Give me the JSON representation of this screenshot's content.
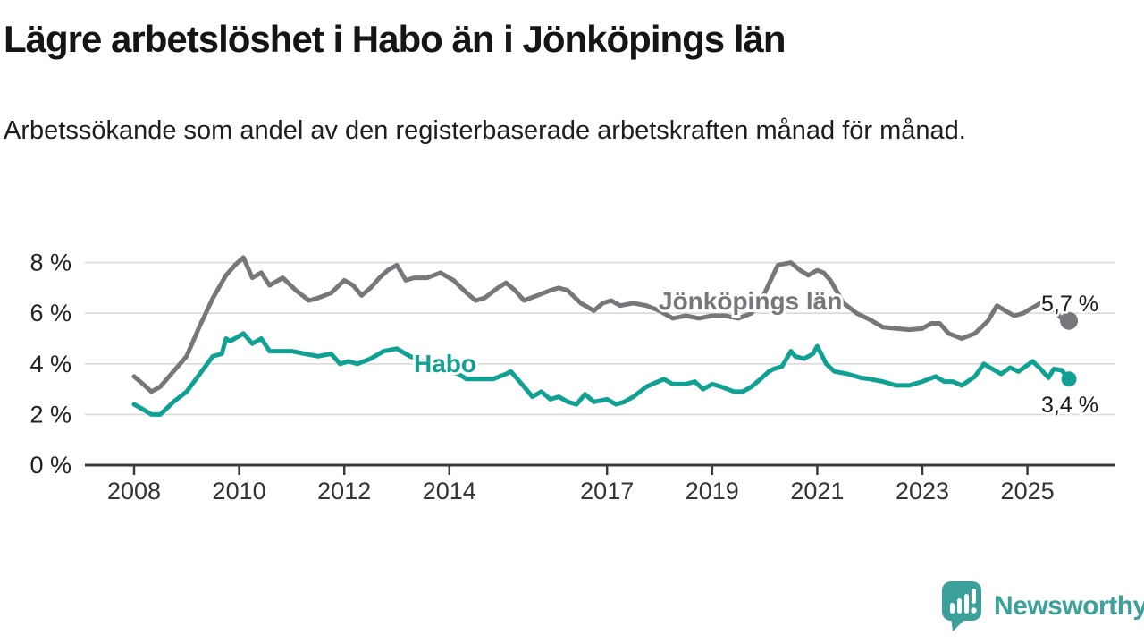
{
  "header": {
    "title": "Lägre arbetslöshet i Habo än i Jönköpings län",
    "subtitle": "Arbetssökande som andel av den registerbaserade arbetskraften månad för månad."
  },
  "chart_data": {
    "type": "line",
    "title": "Lägre arbetslöshet i Habo än i Jönköpings län",
    "subtitle": "Arbetssökande som andel av den registerbaserade arbetskraften månad för månad.",
    "xlabel": "",
    "ylabel": "",
    "y_unit": "%",
    "x_unit": "year",
    "xlim": [
      2007.06,
      2026.67
    ],
    "ylim": [
      0,
      8.6
    ],
    "grid": "horizontal",
    "legend": "inline-labels",
    "y_ticks": [
      {
        "value": 0,
        "label": "0 %"
      },
      {
        "value": 2,
        "label": "2 %"
      },
      {
        "value": 4,
        "label": "4 %"
      },
      {
        "value": 6,
        "label": "6 %"
      },
      {
        "value": 8,
        "label": "8 %"
      }
    ],
    "x_ticks": [
      {
        "year": 2008,
        "label": "2008"
      },
      {
        "year": 2010,
        "label": "2010"
      },
      {
        "year": 2012,
        "label": "2012"
      },
      {
        "year": 2014,
        "label": "2014"
      },
      {
        "year": 2017,
        "label": "2017"
      },
      {
        "year": 2019,
        "label": "2019"
      },
      {
        "year": 2021,
        "label": "2021"
      },
      {
        "year": 2023,
        "label": "2023"
      },
      {
        "year": 2025,
        "label": "2025"
      }
    ],
    "series": [
      {
        "name": "Jönköpings län",
        "color": "#77777b",
        "end_label": "5,7 %",
        "end_value": 5.7,
        "points": [
          [
            2008.0,
            3.5
          ],
          [
            2008.17,
            3.2
          ],
          [
            2008.33,
            2.9
          ],
          [
            2008.5,
            3.1
          ],
          [
            2008.75,
            3.7
          ],
          [
            2009.0,
            4.3
          ],
          [
            2009.25,
            5.5
          ],
          [
            2009.5,
            6.6
          ],
          [
            2009.75,
            7.5
          ],
          [
            2009.92,
            7.9
          ],
          [
            2010.08,
            8.2
          ],
          [
            2010.25,
            7.4
          ],
          [
            2010.42,
            7.6
          ],
          [
            2010.58,
            7.1
          ],
          [
            2010.83,
            7.4
          ],
          [
            2011.08,
            6.9
          ],
          [
            2011.33,
            6.5
          ],
          [
            2011.5,
            6.6
          ],
          [
            2011.75,
            6.8
          ],
          [
            2012.0,
            7.3
          ],
          [
            2012.17,
            7.1
          ],
          [
            2012.33,
            6.7
          ],
          [
            2012.5,
            7.0
          ],
          [
            2012.67,
            7.4
          ],
          [
            2012.83,
            7.7
          ],
          [
            2013.0,
            7.9
          ],
          [
            2013.17,
            7.3
          ],
          [
            2013.33,
            7.4
          ],
          [
            2013.58,
            7.4
          ],
          [
            2013.83,
            7.6
          ],
          [
            2014.08,
            7.3
          ],
          [
            2014.33,
            6.8
          ],
          [
            2014.5,
            6.5
          ],
          [
            2014.67,
            6.6
          ],
          [
            2014.92,
            7.0
          ],
          [
            2015.08,
            7.2
          ],
          [
            2015.25,
            6.9
          ],
          [
            2015.42,
            6.5
          ],
          [
            2015.67,
            6.7
          ],
          [
            2015.92,
            6.9
          ],
          [
            2016.08,
            7.0
          ],
          [
            2016.25,
            6.9
          ],
          [
            2016.5,
            6.4
          ],
          [
            2016.75,
            6.1
          ],
          [
            2016.92,
            6.4
          ],
          [
            2017.08,
            6.5
          ],
          [
            2017.25,
            6.3
          ],
          [
            2017.5,
            6.4
          ],
          [
            2017.75,
            6.3
          ],
          [
            2018.0,
            6.1
          ],
          [
            2018.25,
            5.8
          ],
          [
            2018.5,
            5.9
          ],
          [
            2018.75,
            5.8
          ],
          [
            2019.0,
            5.9
          ],
          [
            2019.25,
            5.9
          ],
          [
            2019.5,
            5.8
          ],
          [
            2019.75,
            6.0
          ],
          [
            2020.0,
            6.8
          ],
          [
            2020.25,
            7.9
          ],
          [
            2020.5,
            8.0
          ],
          [
            2020.67,
            7.7
          ],
          [
            2020.83,
            7.5
          ],
          [
            2021.0,
            7.7
          ],
          [
            2021.12,
            7.6
          ],
          [
            2021.25,
            7.3
          ],
          [
            2021.5,
            6.4
          ],
          [
            2021.75,
            6.0
          ],
          [
            2022.0,
            5.75
          ],
          [
            2022.25,
            5.45
          ],
          [
            2022.5,
            5.4
          ],
          [
            2022.75,
            5.35
          ],
          [
            2023.0,
            5.4
          ],
          [
            2023.17,
            5.6
          ],
          [
            2023.33,
            5.6
          ],
          [
            2023.5,
            5.2
          ],
          [
            2023.75,
            5.0
          ],
          [
            2024.0,
            5.2
          ],
          [
            2024.25,
            5.7
          ],
          [
            2024.42,
            6.3
          ],
          [
            2024.58,
            6.1
          ],
          [
            2024.75,
            5.9
          ],
          [
            2024.92,
            6.0
          ],
          [
            2025.08,
            6.2
          ],
          [
            2025.25,
            6.4
          ],
          [
            2025.4,
            6.5
          ],
          [
            2025.55,
            6.0
          ],
          [
            2025.65,
            5.8
          ],
          [
            2025.79,
            5.7
          ]
        ]
      },
      {
        "name": "Habo",
        "color": "#10a193",
        "end_label": "3,4 %",
        "end_value": 3.4,
        "points": [
          [
            2008.0,
            2.4
          ],
          [
            2008.17,
            2.2
          ],
          [
            2008.33,
            2.0
          ],
          [
            2008.5,
            2.0
          ],
          [
            2008.75,
            2.5
          ],
          [
            2009.0,
            2.9
          ],
          [
            2009.25,
            3.6
          ],
          [
            2009.5,
            4.3
          ],
          [
            2009.67,
            4.4
          ],
          [
            2009.75,
            5.0
          ],
          [
            2009.83,
            4.9
          ],
          [
            2010.0,
            5.1
          ],
          [
            2010.08,
            5.2
          ],
          [
            2010.25,
            4.8
          ],
          [
            2010.42,
            5.0
          ],
          [
            2010.58,
            4.5
          ],
          [
            2010.83,
            4.5
          ],
          [
            2011.0,
            4.5
          ],
          [
            2011.25,
            4.4
          ],
          [
            2011.5,
            4.3
          ],
          [
            2011.75,
            4.4
          ],
          [
            2011.92,
            4.0
          ],
          [
            2012.08,
            4.1
          ],
          [
            2012.25,
            4.0
          ],
          [
            2012.5,
            4.2
          ],
          [
            2012.75,
            4.5
          ],
          [
            2013.0,
            4.6
          ],
          [
            2013.25,
            4.3
          ],
          [
            2013.5,
            4.1
          ],
          [
            2013.75,
            3.9
          ],
          [
            2014.0,
            3.7
          ],
          [
            2014.17,
            3.6
          ],
          [
            2014.33,
            3.4
          ],
          [
            2014.58,
            3.4
          ],
          [
            2014.83,
            3.4
          ],
          [
            2015.08,
            3.6
          ],
          [
            2015.17,
            3.7
          ],
          [
            2015.42,
            3.1
          ],
          [
            2015.58,
            2.7
          ],
          [
            2015.75,
            2.9
          ],
          [
            2015.92,
            2.6
          ],
          [
            2016.08,
            2.7
          ],
          [
            2016.25,
            2.5
          ],
          [
            2016.42,
            2.4
          ],
          [
            2016.58,
            2.8
          ],
          [
            2016.75,
            2.5
          ],
          [
            2017.0,
            2.6
          ],
          [
            2017.17,
            2.4
          ],
          [
            2017.33,
            2.5
          ],
          [
            2017.5,
            2.7
          ],
          [
            2017.75,
            3.1
          ],
          [
            2018.08,
            3.4
          ],
          [
            2018.25,
            3.2
          ],
          [
            2018.5,
            3.2
          ],
          [
            2018.67,
            3.3
          ],
          [
            2018.83,
            3.0
          ],
          [
            2019.0,
            3.2
          ],
          [
            2019.17,
            3.1
          ],
          [
            2019.42,
            2.9
          ],
          [
            2019.58,
            2.9
          ],
          [
            2019.75,
            3.1
          ],
          [
            2019.92,
            3.4
          ],
          [
            2020.08,
            3.7
          ],
          [
            2020.17,
            3.8
          ],
          [
            2020.33,
            3.9
          ],
          [
            2020.5,
            4.5
          ],
          [
            2020.58,
            4.3
          ],
          [
            2020.75,
            4.2
          ],
          [
            2020.92,
            4.4
          ],
          [
            2021.0,
            4.7
          ],
          [
            2021.17,
            4.0
          ],
          [
            2021.33,
            3.7
          ],
          [
            2021.58,
            3.6
          ],
          [
            2021.83,
            3.45
          ],
          [
            2022.0,
            3.4
          ],
          [
            2022.25,
            3.3
          ],
          [
            2022.5,
            3.15
          ],
          [
            2022.75,
            3.15
          ],
          [
            2023.0,
            3.3
          ],
          [
            2023.25,
            3.5
          ],
          [
            2023.42,
            3.3
          ],
          [
            2023.58,
            3.3
          ],
          [
            2023.75,
            3.15
          ],
          [
            2024.0,
            3.5
          ],
          [
            2024.17,
            4.0
          ],
          [
            2024.33,
            3.8
          ],
          [
            2024.5,
            3.6
          ],
          [
            2024.67,
            3.85
          ],
          [
            2024.83,
            3.7
          ],
          [
            2025.0,
            3.95
          ],
          [
            2025.1,
            4.1
          ],
          [
            2025.25,
            3.8
          ],
          [
            2025.4,
            3.45
          ],
          [
            2025.5,
            3.8
          ],
          [
            2025.65,
            3.75
          ],
          [
            2025.79,
            3.4
          ]
        ]
      }
    ]
  },
  "footer": {
    "brand": "Newsworthy"
  },
  "colors": {
    "accent_teal": "#10a193",
    "line_gray": "#77777b",
    "gridline": "#dadada",
    "axis": "#3b3b3b",
    "logo": "#3ba19a"
  }
}
